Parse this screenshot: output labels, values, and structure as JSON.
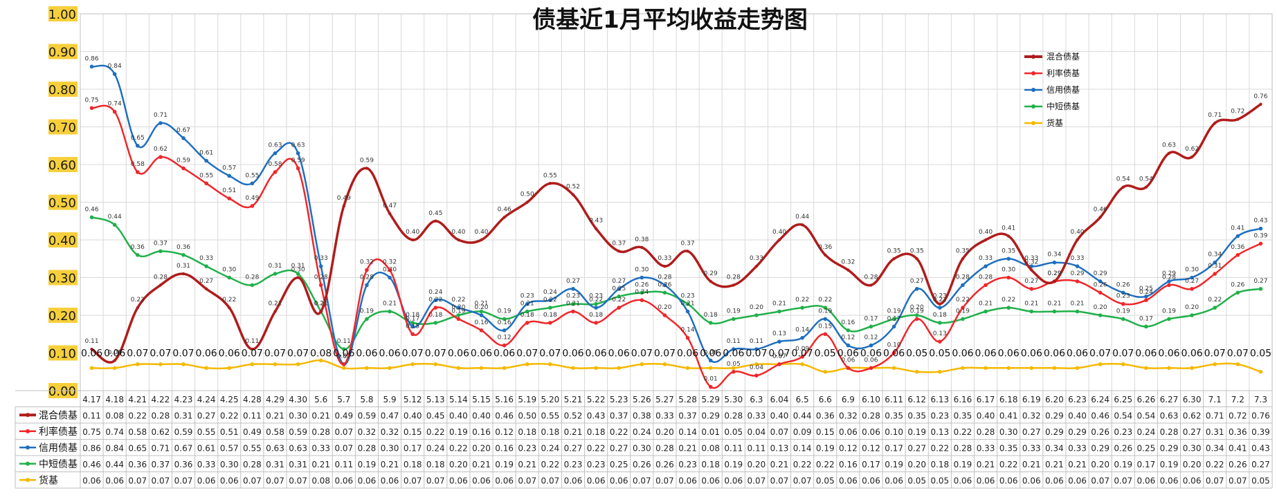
{
  "chart_data": {
    "type": "line",
    "title": "债基近1月平均收益走势图",
    "ylim": [
      0,
      1.0
    ],
    "yticks": [
      "0.00",
      "0.10",
      "0.20",
      "0.30",
      "0.40",
      "0.50",
      "0.60",
      "0.70",
      "0.80",
      "0.90",
      "1.00"
    ],
    "grid": true,
    "legend_position": "top-right",
    "categories": [
      "4.17",
      "4.18",
      "4.21",
      "4.22",
      "4.23",
      "4.24",
      "4.25",
      "4.28",
      "4.29",
      "4.30",
      "5.6",
      "5.7",
      "5.8",
      "5.9",
      "5.12",
      "5.13",
      "5.14",
      "5.15",
      "5.16",
      "5.19",
      "5.20",
      "5.21",
      "5.22",
      "5.23",
      "5.26",
      "5.27",
      "5.28",
      "5.29",
      "5.30",
      "6.3",
      "6.04",
      "6.5",
      "6.6",
      "6.9",
      "6.10",
      "6.11",
      "6.12",
      "6.13",
      "6.16",
      "6.17",
      "6.18",
      "6.19",
      "6.20",
      "6.23",
      "6.24",
      "6.25",
      "6.26",
      "6.27",
      "6.30",
      "7.1",
      "7.2",
      "7.3"
    ],
    "series": [
      {
        "name": "混合债基",
        "color": "#b01c1c",
        "values": [
          0.11,
          0.08,
          0.22,
          0.28,
          0.31,
          0.27,
          0.22,
          0.11,
          0.21,
          0.3,
          0.21,
          0.49,
          0.59,
          0.47,
          0.4,
          0.45,
          0.4,
          0.4,
          0.46,
          0.5,
          0.55,
          0.52,
          0.43,
          0.37,
          0.38,
          0.33,
          0.37,
          0.29,
          0.28,
          0.33,
          0.4,
          0.44,
          0.36,
          0.32,
          0.28,
          0.35,
          0.35,
          0.23,
          0.35,
          0.4,
          0.41,
          0.32,
          0.29,
          0.4,
          0.46,
          0.54,
          0.54,
          0.63,
          0.62,
          0.71,
          0.72,
          0.76
        ]
      },
      {
        "name": "利率债基",
        "color": "#f0262a",
        "values": [
          0.75,
          0.74,
          0.58,
          0.62,
          0.59,
          0.55,
          0.51,
          0.49,
          0.58,
          0.59,
          0.28,
          0.07,
          0.32,
          0.32,
          0.15,
          0.22,
          0.19,
          0.16,
          0.12,
          0.18,
          0.18,
          0.21,
          0.18,
          0.22,
          0.24,
          0.2,
          0.14,
          0.01,
          0.05,
          0.04,
          0.07,
          0.09,
          0.15,
          0.06,
          0.06,
          0.1,
          0.19,
          0.13,
          0.22,
          0.28,
          0.3,
          0.27,
          0.29,
          0.29,
          0.26,
          0.23,
          0.24,
          0.28,
          0.27,
          0.31,
          0.36,
          0.39
        ]
      },
      {
        "name": "信用债基",
        "color": "#1f6fbf",
        "values": [
          0.86,
          0.84,
          0.65,
          0.71,
          0.67,
          0.61,
          0.57,
          0.55,
          0.63,
          0.63,
          0.33,
          0.07,
          0.28,
          0.3,
          0.17,
          0.24,
          0.22,
          0.2,
          0.16,
          0.23,
          0.24,
          0.27,
          0.22,
          0.27,
          0.3,
          0.28,
          0.21,
          0.08,
          0.11,
          0.11,
          0.13,
          0.14,
          0.19,
          0.12,
          0.12,
          0.17,
          0.27,
          0.22,
          0.28,
          0.33,
          0.35,
          0.33,
          0.34,
          0.33,
          0.29,
          0.26,
          0.25,
          0.29,
          0.3,
          0.34,
          0.41,
          0.43
        ]
      },
      {
        "name": "中短债基",
        "color": "#21b04a",
        "values": [
          0.46,
          0.44,
          0.36,
          0.37,
          0.36,
          0.33,
          0.3,
          0.28,
          0.31,
          0.31,
          0.21,
          0.11,
          0.19,
          0.21,
          0.18,
          0.18,
          0.2,
          0.21,
          0.19,
          0.21,
          0.22,
          0.23,
          0.23,
          0.25,
          0.26,
          0.26,
          0.23,
          0.18,
          0.19,
          0.2,
          0.21,
          0.22,
          0.22,
          0.16,
          0.17,
          0.19,
          0.2,
          0.18,
          0.19,
          0.21,
          0.22,
          0.21,
          0.21,
          0.21,
          0.2,
          0.19,
          0.17,
          0.19,
          0.2,
          0.22,
          0.26,
          0.27
        ]
      },
      {
        "name": "货基",
        "color": "#f5b800",
        "values": [
          0.06,
          0.06,
          0.07,
          0.07,
          0.07,
          0.06,
          0.06,
          0.07,
          0.07,
          0.07,
          0.08,
          0.06,
          0.06,
          0.06,
          0.07,
          0.07,
          0.06,
          0.06,
          0.06,
          0.07,
          0.07,
          0.06,
          0.06,
          0.06,
          0.07,
          0.07,
          0.06,
          0.06,
          0.06,
          0.07,
          0.07,
          0.07,
          0.05,
          0.06,
          0.06,
          0.06,
          0.05,
          0.05,
          0.06,
          0.06,
          0.06,
          0.06,
          0.06,
          0.06,
          0.07,
          0.07,
          0.06,
          0.06,
          0.06,
          0.07,
          0.07,
          0.05
        ]
      }
    ]
  }
}
